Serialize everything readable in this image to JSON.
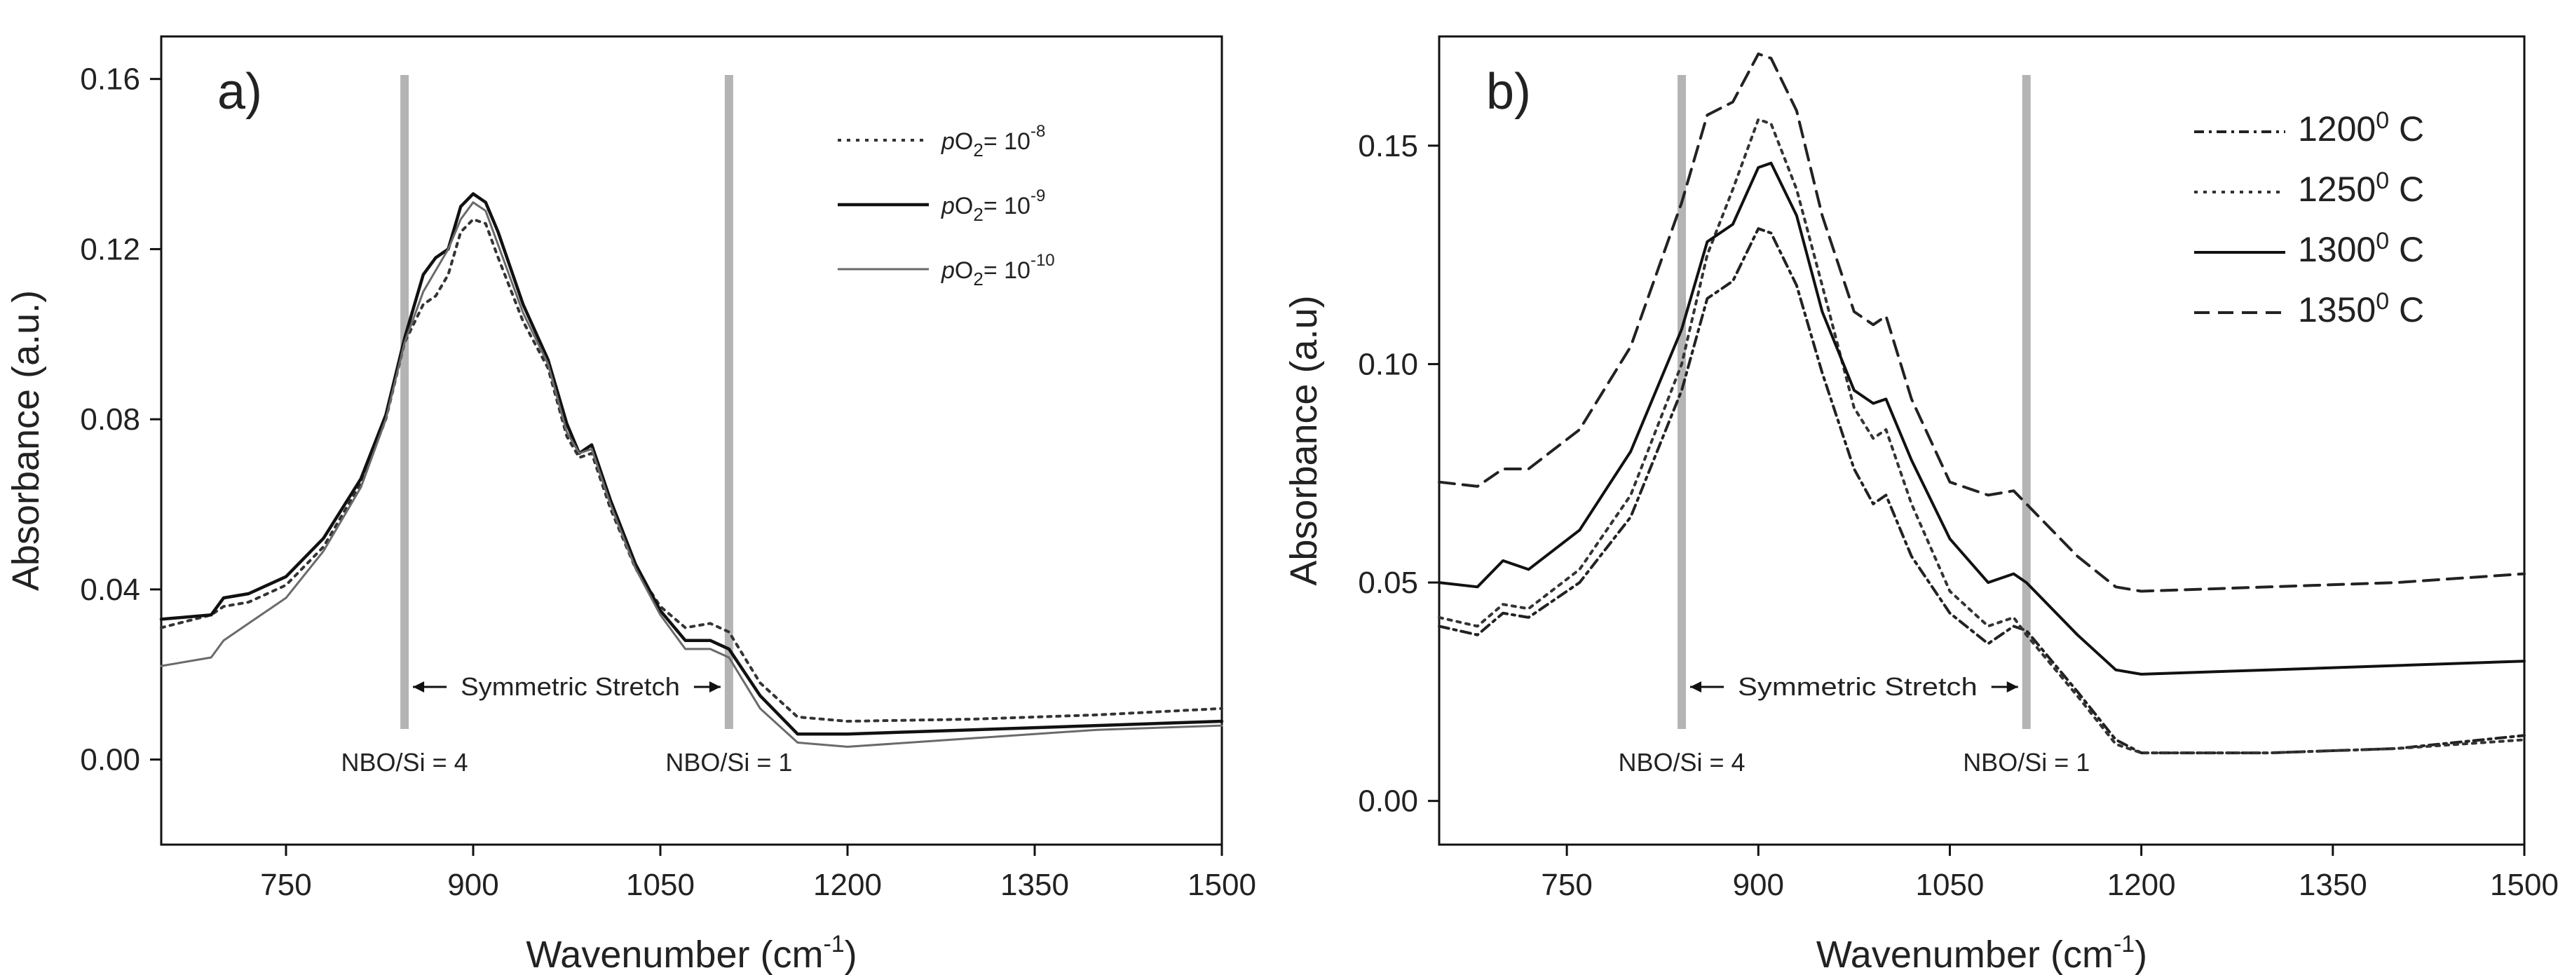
{
  "chart_data": [
    {
      "panel": "a)",
      "type": "line",
      "xlabel": "Wavenumber (cm",
      "xlabel_sup": "-1",
      "xlabel_end": ")",
      "ylabel": "Absorbance (a.u.)",
      "xlim": [
        650,
        1500
      ],
      "ylim": [
        -0.02,
        0.17
      ],
      "xticks": [
        {
          "value": 750,
          "label": "750"
        },
        {
          "value": 900,
          "label": "900"
        },
        {
          "value": 1050,
          "label": "1050"
        },
        {
          "value": 1200,
          "label": "1200"
        },
        {
          "value": 1350,
          "label": "1350"
        },
        {
          "value": 1500,
          "label": "1500"
        }
      ],
      "yticks": [
        {
          "value": 0.0,
          "label": "0.00"
        },
        {
          "value": 0.04,
          "label": "0.04"
        },
        {
          "value": 0.08,
          "label": "0.08"
        },
        {
          "value": 0.12,
          "label": "0.12"
        },
        {
          "value": 0.16,
          "label": "0.16"
        }
      ],
      "vlines": [
        845,
        1105
      ],
      "annotations": {
        "stretch": "Symmetric Stretch",
        "left": "NBO/Si = 4",
        "right": "NBO/Si = 1"
      },
      "series": [
        {
          "name": "pO2 = 10-8",
          "label": {
            "italic": "p",
            "main": "O",
            "sub": "2",
            "mid": "= 10",
            "sup": "-8"
          },
          "style": "dotted",
          "points": [
            [
              650,
              0.031
            ],
            [
              690,
              0.034
            ],
            [
              700,
              0.036
            ],
            [
              720,
              0.037
            ],
            [
              750,
              0.041
            ],
            [
              780,
              0.05
            ],
            [
              810,
              0.065
            ],
            [
              830,
              0.08
            ],
            [
              845,
              0.098
            ],
            [
              860,
              0.107
            ],
            [
              870,
              0.109
            ],
            [
              880,
              0.114
            ],
            [
              890,
              0.124
            ],
            [
              900,
              0.127
            ],
            [
              910,
              0.126
            ],
            [
              920,
              0.118
            ],
            [
              940,
              0.103
            ],
            [
              960,
              0.092
            ],
            [
              975,
              0.076
            ],
            [
              985,
              0.071
            ],
            [
              995,
              0.072
            ],
            [
              1010,
              0.059
            ],
            [
              1030,
              0.045
            ],
            [
              1050,
              0.036
            ],
            [
              1070,
              0.031
            ],
            [
              1090,
              0.032
            ],
            [
              1105,
              0.03
            ],
            [
              1130,
              0.018
            ],
            [
              1160,
              0.01
            ],
            [
              1200,
              0.009
            ],
            [
              1300,
              0.0095
            ],
            [
              1400,
              0.0105
            ],
            [
              1500,
              0.012
            ]
          ]
        },
        {
          "name": "pO2 = 10-9",
          "label": {
            "italic": "p",
            "main": "O",
            "sub": "2",
            "mid": "= 10",
            "sup": "-9"
          },
          "style": "solid-dark",
          "points": [
            [
              650,
              0.033
            ],
            [
              690,
              0.034
            ],
            [
              700,
              0.038
            ],
            [
              720,
              0.039
            ],
            [
              750,
              0.043
            ],
            [
              780,
              0.052
            ],
            [
              810,
              0.066
            ],
            [
              830,
              0.081
            ],
            [
              845,
              0.099
            ],
            [
              860,
              0.114
            ],
            [
              870,
              0.118
            ],
            [
              880,
              0.12
            ],
            [
              890,
              0.13
            ],
            [
              900,
              0.133
            ],
            [
              910,
              0.131
            ],
            [
              920,
              0.124
            ],
            [
              940,
              0.107
            ],
            [
              960,
              0.094
            ],
            [
              975,
              0.079
            ],
            [
              985,
              0.072
            ],
            [
              995,
              0.074
            ],
            [
              1010,
              0.061
            ],
            [
              1030,
              0.046
            ],
            [
              1050,
              0.035
            ],
            [
              1070,
              0.028
            ],
            [
              1090,
              0.028
            ],
            [
              1105,
              0.026
            ],
            [
              1130,
              0.015
            ],
            [
              1160,
              0.006
            ],
            [
              1200,
              0.006
            ],
            [
              1300,
              0.007
            ],
            [
              1400,
              0.008
            ],
            [
              1500,
              0.009
            ]
          ]
        },
        {
          "name": "pO2 = 10-10",
          "label": {
            "italic": "p",
            "main": "O",
            "sub": "2",
            "mid": "= 10",
            "sup": "-10"
          },
          "style": "solid-light",
          "points": [
            [
              650,
              0.022
            ],
            [
              690,
              0.024
            ],
            [
              700,
              0.028
            ],
            [
              720,
              0.032
            ],
            [
              750,
              0.038
            ],
            [
              780,
              0.049
            ],
            [
              810,
              0.064
            ],
            [
              830,
              0.08
            ],
            [
              845,
              0.098
            ],
            [
              860,
              0.11
            ],
            [
              870,
              0.115
            ],
            [
              880,
              0.12
            ],
            [
              890,
              0.127
            ],
            [
              900,
              0.131
            ],
            [
              910,
              0.129
            ],
            [
              920,
              0.121
            ],
            [
              940,
              0.105
            ],
            [
              960,
              0.093
            ],
            [
              975,
              0.077
            ],
            [
              985,
              0.072
            ],
            [
              995,
              0.073
            ],
            [
              1010,
              0.06
            ],
            [
              1030,
              0.045
            ],
            [
              1050,
              0.034
            ],
            [
              1070,
              0.026
            ],
            [
              1090,
              0.026
            ],
            [
              1105,
              0.024
            ],
            [
              1130,
              0.012
            ],
            [
              1160,
              0.004
            ],
            [
              1200,
              0.003
            ],
            [
              1300,
              0.005
            ],
            [
              1400,
              0.007
            ],
            [
              1500,
              0.008
            ]
          ]
        }
      ]
    },
    {
      "panel": "b)",
      "type": "line",
      "xlabel": "Wavenumber (cm",
      "xlabel_sup": "-1",
      "xlabel_end": ")",
      "ylabel": "Absorbance (a.u)",
      "xlim": [
        650,
        1500
      ],
      "ylim": [
        -0.01,
        0.175
      ],
      "xticks": [
        {
          "value": 750,
          "label": "750"
        },
        {
          "value": 900,
          "label": "900"
        },
        {
          "value": 1050,
          "label": "1050"
        },
        {
          "value": 1200,
          "label": "1200"
        },
        {
          "value": 1350,
          "label": "1350"
        },
        {
          "value": 1500,
          "label": "1500"
        }
      ],
      "yticks": [
        {
          "value": 0.0,
          "label": "0.00"
        },
        {
          "value": 0.05,
          "label": "0.05"
        },
        {
          "value": 0.1,
          "label": "0.10"
        },
        {
          "value": 0.15,
          "label": "0.15"
        }
      ],
      "vlines": [
        840,
        1110
      ],
      "annotations": {
        "stretch": "Symmetric Stretch",
        "left": "NBO/Si = 4",
        "right": "NBO/Si = 1"
      },
      "series": [
        {
          "name": "1200° C",
          "label": {
            "main": "1200",
            "sup": "0",
            "end": " C"
          },
          "style": "dashdot",
          "points": [
            [
              650,
              0.04
            ],
            [
              680,
              0.038
            ],
            [
              700,
              0.043
            ],
            [
              720,
              0.042
            ],
            [
              760,
              0.05
            ],
            [
              800,
              0.065
            ],
            [
              840,
              0.094
            ],
            [
              860,
              0.115
            ],
            [
              880,
              0.119
            ],
            [
              900,
              0.131
            ],
            [
              910,
              0.13
            ],
            [
              930,
              0.118
            ],
            [
              950,
              0.098
            ],
            [
              975,
              0.076
            ],
            [
              990,
              0.068
            ],
            [
              1000,
              0.07
            ],
            [
              1020,
              0.056
            ],
            [
              1050,
              0.043
            ],
            [
              1080,
              0.036
            ],
            [
              1100,
              0.04
            ],
            [
              1110,
              0.039
            ],
            [
              1150,
              0.025
            ],
            [
              1180,
              0.014
            ],
            [
              1200,
              0.011
            ],
            [
              1300,
              0.011
            ],
            [
              1400,
              0.012
            ],
            [
              1500,
              0.015
            ]
          ]
        },
        {
          "name": "1250° C",
          "label": {
            "main": "1250",
            "sup": "0",
            "end": " C"
          },
          "style": "dotted",
          "points": [
            [
              650,
              0.042
            ],
            [
              680,
              0.04
            ],
            [
              700,
              0.045
            ],
            [
              720,
              0.044
            ],
            [
              760,
              0.053
            ],
            [
              800,
              0.07
            ],
            [
              840,
              0.1
            ],
            [
              860,
              0.125
            ],
            [
              880,
              0.14
            ],
            [
              900,
              0.156
            ],
            [
              910,
              0.155
            ],
            [
              930,
              0.14
            ],
            [
              950,
              0.118
            ],
            [
              975,
              0.09
            ],
            [
              990,
              0.083
            ],
            [
              1000,
              0.085
            ],
            [
              1020,
              0.068
            ],
            [
              1050,
              0.048
            ],
            [
              1080,
              0.04
            ],
            [
              1100,
              0.042
            ],
            [
              1110,
              0.038
            ],
            [
              1150,
              0.024
            ],
            [
              1180,
              0.013
            ],
            [
              1200,
              0.011
            ],
            [
              1300,
              0.011
            ],
            [
              1400,
              0.012
            ],
            [
              1500,
              0.014
            ]
          ]
        },
        {
          "name": "1300° C",
          "label": {
            "main": "1300",
            "sup": "0",
            "end": " C"
          },
          "style": "solid",
          "points": [
            [
              650,
              0.05
            ],
            [
              680,
              0.049
            ],
            [
              700,
              0.055
            ],
            [
              720,
              0.053
            ],
            [
              760,
              0.062
            ],
            [
              800,
              0.08
            ],
            [
              840,
              0.108
            ],
            [
              860,
              0.128
            ],
            [
              880,
              0.132
            ],
            [
              900,
              0.145
            ],
            [
              910,
              0.146
            ],
            [
              930,
              0.134
            ],
            [
              950,
              0.112
            ],
            [
              975,
              0.094
            ],
            [
              990,
              0.091
            ],
            [
              1000,
              0.092
            ],
            [
              1020,
              0.078
            ],
            [
              1050,
              0.06
            ],
            [
              1080,
              0.05
            ],
            [
              1100,
              0.052
            ],
            [
              1110,
              0.05
            ],
            [
              1150,
              0.038
            ],
            [
              1180,
              0.03
            ],
            [
              1200,
              0.029
            ],
            [
              1300,
              0.03
            ],
            [
              1400,
              0.031
            ],
            [
              1500,
              0.032
            ]
          ]
        },
        {
          "name": "1350° C",
          "label": {
            "main": "1350",
            "sup": "0",
            "end": " C"
          },
          "style": "dashed",
          "points": [
            [
              650,
              0.073
            ],
            [
              680,
              0.072
            ],
            [
              700,
              0.076
            ],
            [
              720,
              0.076
            ],
            [
              760,
              0.085
            ],
            [
              800,
              0.104
            ],
            [
              840,
              0.137
            ],
            [
              860,
              0.157
            ],
            [
              880,
              0.16
            ],
            [
              900,
              0.171
            ],
            [
              910,
              0.17
            ],
            [
              930,
              0.158
            ],
            [
              950,
              0.134
            ],
            [
              975,
              0.112
            ],
            [
              990,
              0.109
            ],
            [
              1000,
              0.111
            ],
            [
              1020,
              0.092
            ],
            [
              1050,
              0.073
            ],
            [
              1080,
              0.07
            ],
            [
              1100,
              0.071
            ],
            [
              1110,
              0.068
            ],
            [
              1150,
              0.056
            ],
            [
              1180,
              0.049
            ],
            [
              1200,
              0.048
            ],
            [
              1300,
              0.049
            ],
            [
              1400,
              0.05
            ],
            [
              1500,
              0.052
            ]
          ]
        }
      ]
    }
  ]
}
